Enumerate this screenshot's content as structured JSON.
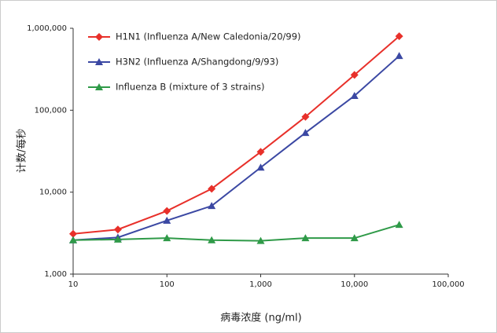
{
  "chart_data": {
    "type": "line",
    "x_label": "病毒浓度 (ng/ml)",
    "y_label": "计数/每秒",
    "x": [
      10,
      30,
      100,
      300,
      1000,
      3000,
      10000,
      30000
    ],
    "series": [
      {
        "name": "H1N1 (Influenza A/New Caledonia/20/99)",
        "color": "#e8302a",
        "marker": "diamond",
        "values": [
          3100,
          3500,
          5900,
          11000,
          31000,
          83000,
          270000,
          800000
        ]
      },
      {
        "name": "H3N2 (Influenza A/Shangdong/9/93)",
        "color": "#3b48a3",
        "marker": "triangle",
        "values": [
          2600,
          2800,
          4500,
          6800,
          20000,
          53000,
          150000,
          460000
        ]
      },
      {
        "name": "Influenza B (mixture of 3 strains)",
        "color": "#2f9a48",
        "marker": "triangle",
        "values": [
          2600,
          2650,
          2750,
          2600,
          2550,
          2750,
          2750,
          4000
        ]
      }
    ],
    "xscale": "log",
    "yscale": "log",
    "xlim": [
      10,
      100000
    ],
    "ylim": [
      1000,
      1000000
    ],
    "xticks": [
      10,
      100,
      {
        "value": 1000,
        "label": "1,000"
      },
      {
        "value": 10000,
        "label": "10,000"
      },
      {
        "value": 100000,
        "label": "100,000"
      }
    ],
    "yticks": [
      {
        "value": 1000,
        "label": "1,000"
      },
      {
        "value": 10000,
        "label": "10,000"
      },
      {
        "value": 100000,
        "label": "100,000"
      },
      {
        "value": 1000000,
        "label": "1,000,000"
      }
    ],
    "legend": "upper-left"
  }
}
